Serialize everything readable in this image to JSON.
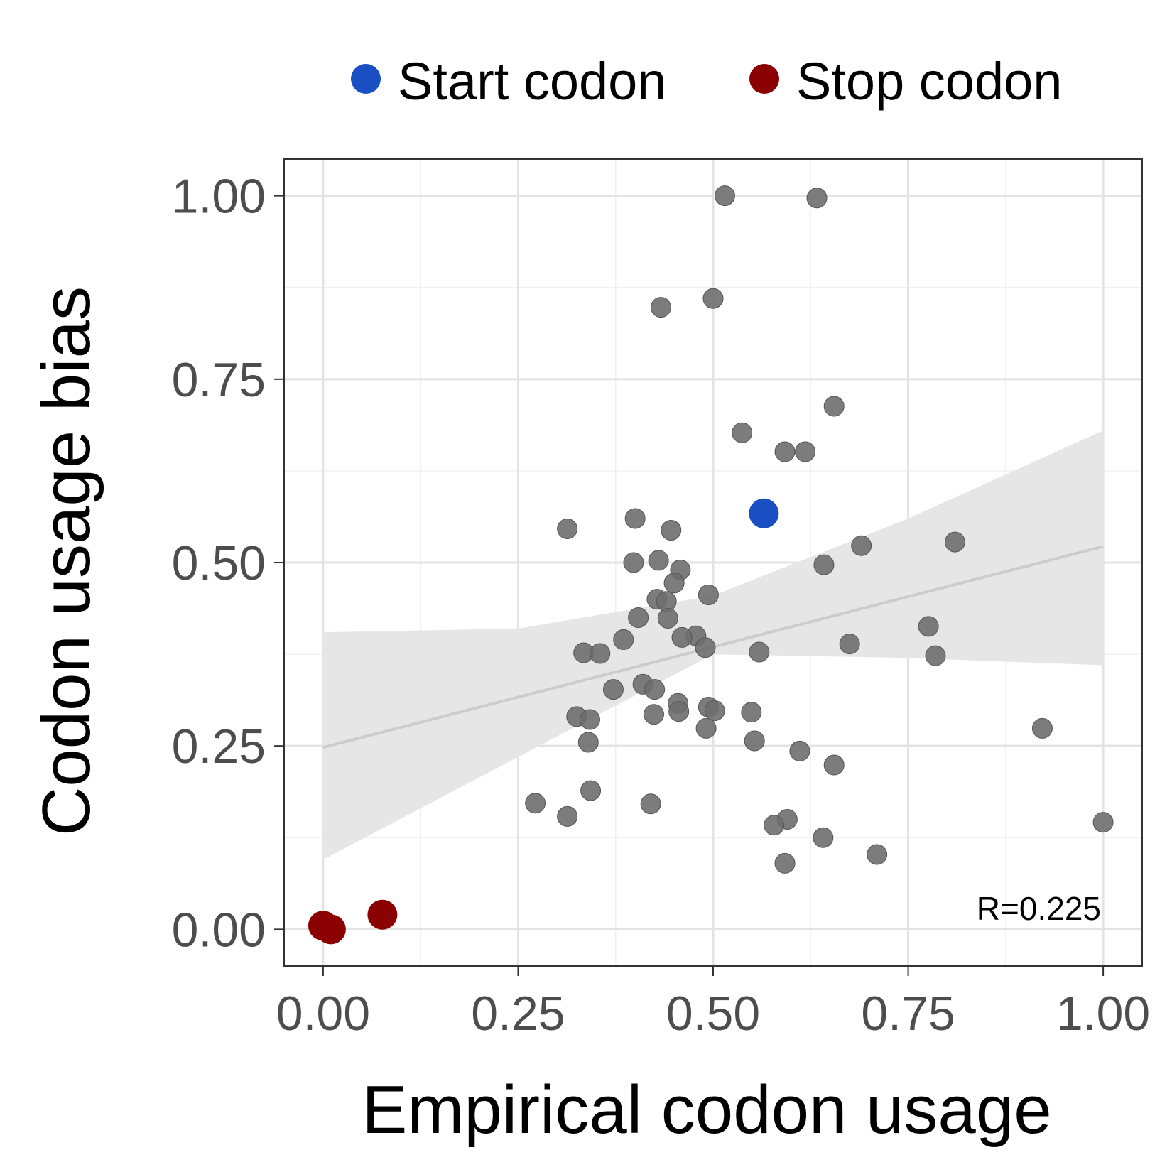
{
  "chart_data": {
    "type": "scatter",
    "xlabel": "Empirical codon usage",
    "ylabel": "Codon usage bias",
    "xlim": [
      -0.05,
      1.05
    ],
    "ylim": [
      -0.05,
      1.05
    ],
    "x_ticks": [
      "0.00",
      "0.25",
      "0.50",
      "0.75",
      "1.00"
    ],
    "y_ticks": [
      "0.00",
      "0.25",
      "0.50",
      "0.75",
      "1.00"
    ],
    "grid": true,
    "legend": {
      "placement": "top",
      "entries": [
        {
          "label": "Start codon",
          "color": "#1a4fc4"
        },
        {
          "label": "Stop codon",
          "color": "#8b0000"
        }
      ]
    },
    "annotation": "R=0.225",
    "fit": {
      "line": [
        [
          0.0,
          0.248
        ],
        [
          1.0,
          0.522
        ]
      ],
      "band_upper": [
        [
          0.0,
          0.405
        ],
        [
          0.25,
          0.41
        ],
        [
          0.5,
          0.455
        ],
        [
          0.75,
          0.56
        ],
        [
          1.0,
          0.68
        ]
      ],
      "band_lower": [
        [
          0.0,
          0.095
        ],
        [
          0.25,
          0.235
        ],
        [
          0.5,
          0.375
        ],
        [
          0.75,
          0.37
        ],
        [
          1.0,
          0.36
        ]
      ],
      "line_color": "#cccccc",
      "band_color": "#e6e6e6"
    },
    "series": [
      {
        "color": "#6e6e6e",
        "points": [
          [
            0.515,
            1.0
          ],
          [
            0.633,
            0.997
          ],
          [
            0.433,
            0.848
          ],
          [
            0.5,
            0.86
          ],
          [
            0.655,
            0.713
          ],
          [
            0.537,
            0.677
          ],
          [
            0.592,
            0.651
          ],
          [
            0.618,
            0.651
          ],
          [
            0.313,
            0.546
          ],
          [
            0.4,
            0.56
          ],
          [
            0.446,
            0.544
          ],
          [
            0.81,
            0.528
          ],
          [
            0.69,
            0.523
          ],
          [
            0.398,
            0.5
          ],
          [
            0.43,
            0.503
          ],
          [
            0.458,
            0.49
          ],
          [
            0.642,
            0.497
          ],
          [
            0.45,
            0.472
          ],
          [
            0.494,
            0.456
          ],
          [
            0.428,
            0.45
          ],
          [
            0.44,
            0.447
          ],
          [
            0.404,
            0.425
          ],
          [
            0.442,
            0.424
          ],
          [
            0.478,
            0.4
          ],
          [
            0.46,
            0.398
          ],
          [
            0.385,
            0.395
          ],
          [
            0.776,
            0.413
          ],
          [
            0.49,
            0.384
          ],
          [
            0.334,
            0.377
          ],
          [
            0.355,
            0.376
          ],
          [
            0.559,
            0.378
          ],
          [
            0.675,
            0.389
          ],
          [
            0.785,
            0.373
          ],
          [
            0.372,
            0.327
          ],
          [
            0.41,
            0.334
          ],
          [
            0.425,
            0.327
          ],
          [
            0.455,
            0.308
          ],
          [
            0.456,
            0.297
          ],
          [
            0.494,
            0.303
          ],
          [
            0.502,
            0.298
          ],
          [
            0.549,
            0.296
          ],
          [
            0.325,
            0.29
          ],
          [
            0.342,
            0.286
          ],
          [
            0.424,
            0.293
          ],
          [
            0.491,
            0.274
          ],
          [
            0.922,
            0.274
          ],
          [
            0.34,
            0.255
          ],
          [
            0.553,
            0.257
          ],
          [
            0.611,
            0.243
          ],
          [
            0.655,
            0.224
          ],
          [
            0.343,
            0.189
          ],
          [
            0.272,
            0.172
          ],
          [
            0.42,
            0.171
          ],
          [
            0.313,
            0.154
          ],
          [
            0.595,
            0.15
          ],
          [
            0.578,
            0.142
          ],
          [
            1.0,
            0.146
          ],
          [
            0.641,
            0.125
          ],
          [
            0.71,
            0.102
          ],
          [
            0.592,
            0.09
          ]
        ]
      },
      {
        "name": "Start codon",
        "color": "#1a4fc4",
        "points": [
          [
            0.565,
            0.567
          ]
        ]
      },
      {
        "name": "Stop codon",
        "color": "#8b0000",
        "points": [
          [
            0.0,
            0.005
          ],
          [
            0.01,
            0.0
          ],
          [
            0.076,
            0.02
          ]
        ]
      }
    ]
  }
}
